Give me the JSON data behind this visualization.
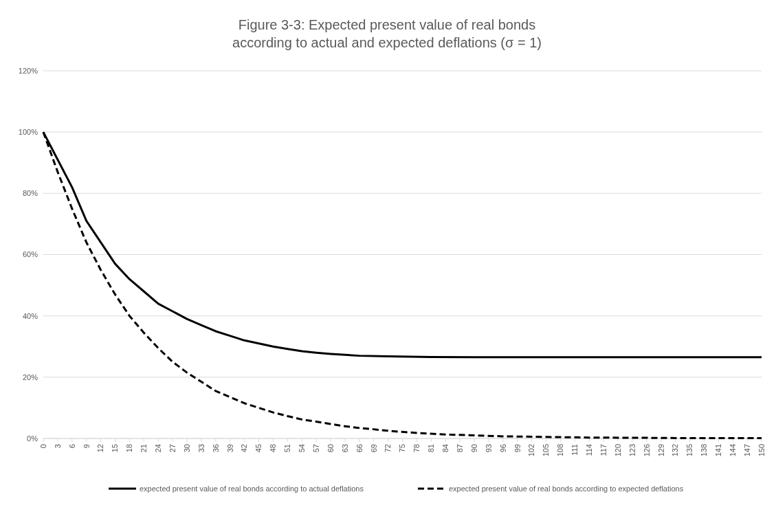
{
  "chart_data": {
    "type": "line",
    "title": "Figure 3-3: Expected present value of real bonds\naccording to actual and expected deflations (σ = 1)",
    "xlim": [
      0,
      150
    ],
    "xticks": [
      0,
      3,
      6,
      9,
      12,
      15,
      18,
      21,
      24,
      27,
      30,
      33,
      36,
      39,
      42,
      45,
      48,
      51,
      54,
      57,
      60,
      63,
      66,
      69,
      72,
      75,
      78,
      81,
      84,
      87,
      90,
      93,
      96,
      99,
      102,
      105,
      108,
      111,
      114,
      117,
      120,
      123,
      126,
      129,
      132,
      135,
      138,
      141,
      144,
      147,
      150
    ],
    "ylim": [
      0,
      120
    ],
    "yticks": [
      {
        "value": 0,
        "label": "0%"
      },
      {
        "value": 20,
        "label": "20%"
      },
      {
        "value": 40,
        "label": "40%"
      },
      {
        "value": 60,
        "label": "60%"
      },
      {
        "value": 80,
        "label": "80%"
      },
      {
        "value": 100,
        "label": "100%"
      },
      {
        "value": 120,
        "label": "120%"
      }
    ],
    "grid": "y",
    "legend": "bottom",
    "marker": "none",
    "series": [
      {
        "name": "expected present value of real bonds according to actual deflations",
        "color": "#000000",
        "line_style": "solid",
        "x": [
          0,
          3,
          6,
          9,
          12,
          15,
          18,
          21,
          24,
          27,
          30,
          33,
          36,
          39,
          42,
          45,
          48,
          51,
          54,
          57,
          60,
          63,
          66,
          72,
          81,
          90,
          150
        ],
        "values": [
          100,
          91,
          82,
          71,
          64,
          57,
          52,
          48,
          44,
          41.5,
          39,
          37,
          35,
          33.5,
          32,
          31,
          30,
          29.2,
          28.5,
          28,
          27.6,
          27.3,
          27,
          26.8,
          26.6,
          26.5,
          26.5
        ]
      },
      {
        "name": "expected present value of real bonds according to expected deflations",
        "color": "#000000",
        "line_style": "dashed",
        "x": [
          0,
          3,
          6,
          9,
          12,
          15,
          18,
          21,
          24,
          27,
          30,
          33,
          36,
          39,
          42,
          45,
          48,
          51,
          54,
          57,
          60,
          63,
          66,
          69,
          72,
          78,
          84,
          90,
          96,
          105,
          114,
          126,
          135,
          150
        ],
        "values": [
          100,
          87,
          75,
          64,
          55,
          47,
          40,
          34.5,
          29.5,
          25,
          21.5,
          18.5,
          15.5,
          13.5,
          11.5,
          10,
          8.5,
          7.3,
          6.2,
          5.5,
          4.7,
          4,
          3.4,
          3,
          2.5,
          1.8,
          1.3,
          1,
          0.7,
          0.5,
          0.3,
          0.2,
          0.1,
          0.1
        ]
      }
    ]
  }
}
